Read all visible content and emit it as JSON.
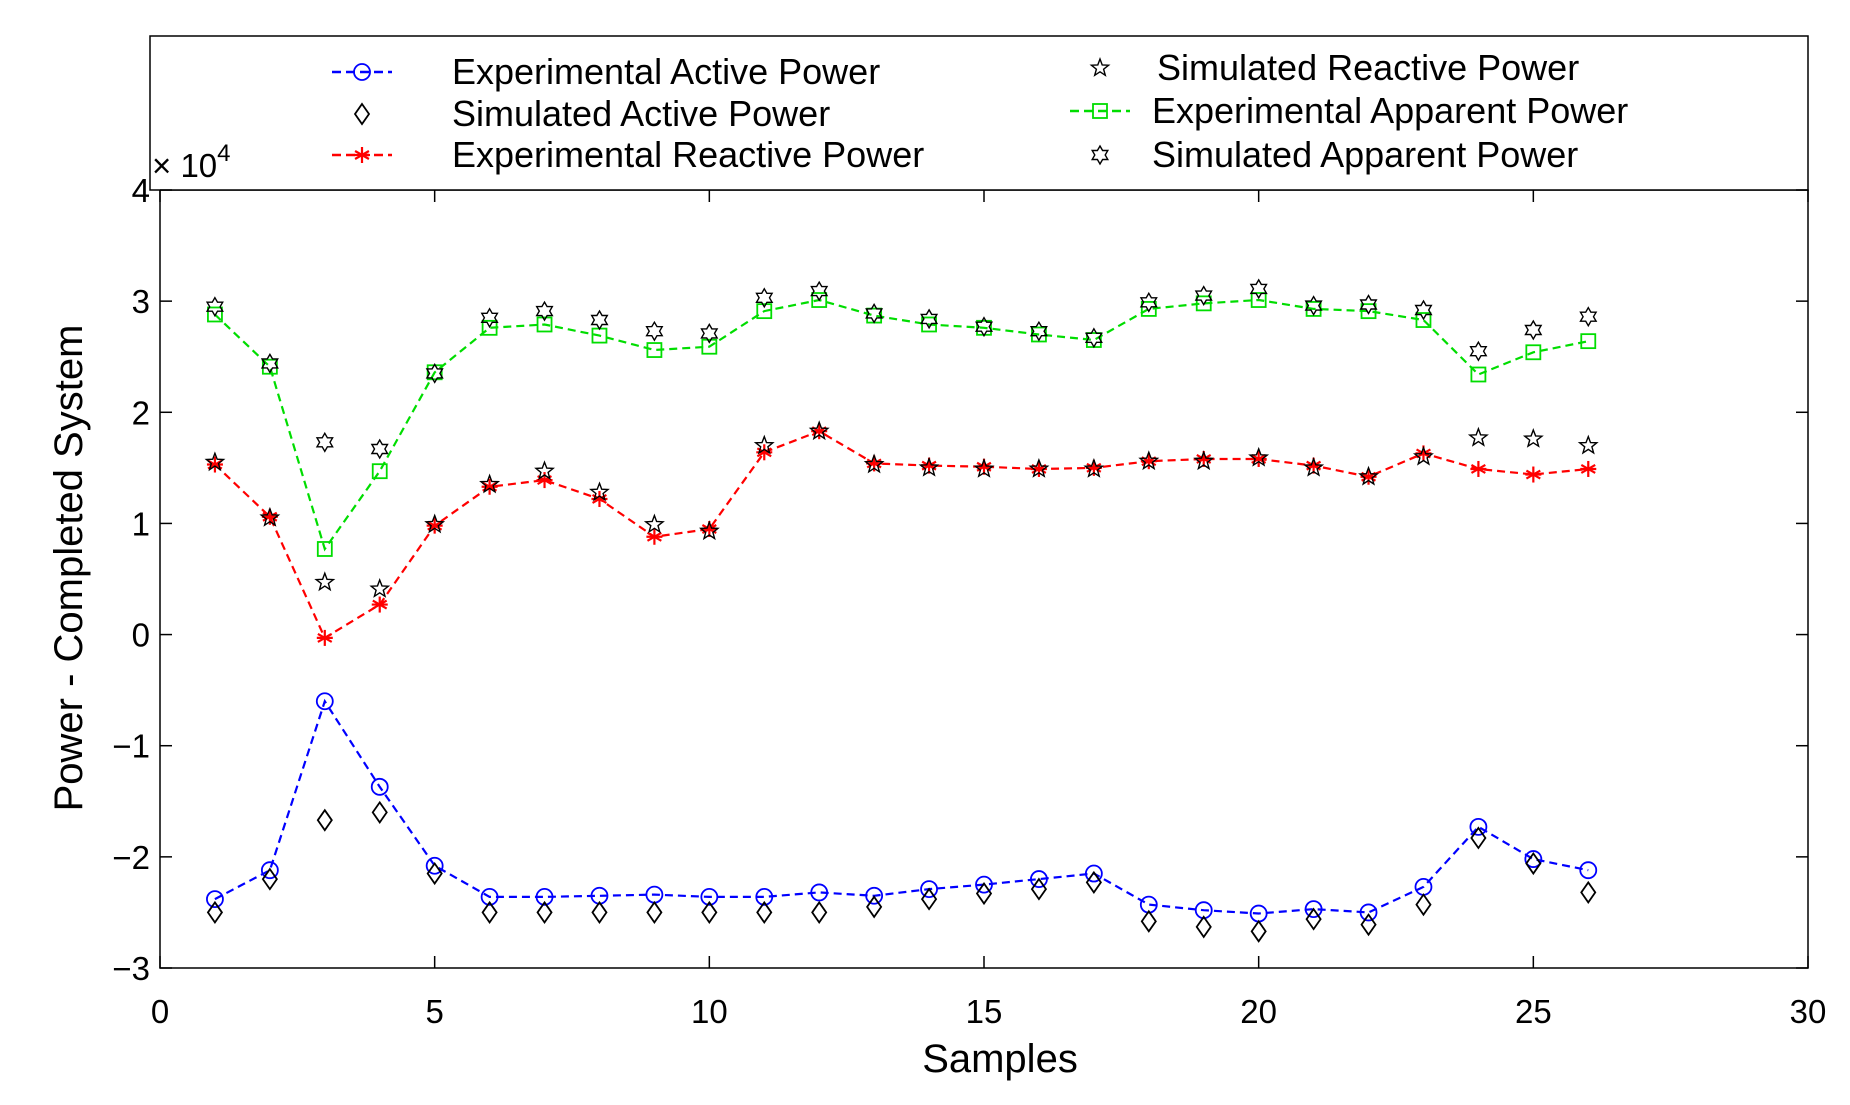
{
  "chart_data": {
    "type": "line",
    "xlabel": "Samples",
    "ylabel": "Power - Completed System",
    "xlim": [
      0,
      30
    ],
    "ylim": [
      -3,
      4
    ],
    "xticks": [
      "0",
      "5",
      "10",
      "15",
      "20",
      "25",
      "30"
    ],
    "yticks": [
      "−3",
      "−2",
      "−1",
      "0",
      "1",
      "2",
      "3",
      "4"
    ],
    "y_exponent": {
      "base": "× 10",
      "power": "4"
    },
    "grid": false,
    "legend_position": "top",
    "x": [
      1,
      2,
      3,
      4,
      5,
      6,
      7,
      8,
      9,
      10,
      11,
      12,
      13,
      14,
      15,
      16,
      17,
      18,
      19,
      20,
      21,
      22,
      23,
      24,
      25,
      26
    ],
    "series": [
      {
        "name": "Experimental Active Power",
        "color": "#0000ff",
        "marker": "circle",
        "line": "dashed",
        "values": [
          -2.38,
          -2.12,
          -0.6,
          -1.37,
          -2.08,
          -2.36,
          -2.36,
          -2.35,
          -2.34,
          -2.36,
          -2.36,
          -2.32,
          -2.35,
          -2.29,
          -2.25,
          -2.2,
          -2.15,
          -2.43,
          -2.48,
          -2.51,
          -2.47,
          -2.5,
          -2.27,
          -1.73,
          -2.02,
          -2.12
        ]
      },
      {
        "name": "Simulated Active Power",
        "color": "#000000",
        "marker": "diamond",
        "line": "none",
        "values": [
          -2.5,
          -2.2,
          -1.67,
          -1.6,
          -2.15,
          -2.5,
          -2.5,
          -2.5,
          -2.5,
          -2.5,
          -2.5,
          -2.5,
          -2.45,
          -2.38,
          -2.33,
          -2.29,
          -2.23,
          -2.58,
          -2.63,
          -2.67,
          -2.56,
          -2.61,
          -2.43,
          -1.83,
          -2.06,
          -2.32
        ]
      },
      {
        "name": "Experimental Reactive Power",
        "color": "#ff0000",
        "marker": "asterisk",
        "line": "dashed",
        "values": [
          1.53,
          1.06,
          -0.03,
          0.27,
          0.98,
          1.33,
          1.39,
          1.22,
          0.88,
          0.95,
          1.64,
          1.83,
          1.54,
          1.52,
          1.51,
          1.49,
          1.5,
          1.56,
          1.58,
          1.58,
          1.52,
          1.42,
          1.63,
          1.49,
          1.44,
          1.49
        ]
      },
      {
        "name": "Simulated Reactive Power",
        "color": "#000000",
        "marker": "star",
        "line": "none",
        "values": [
          1.55,
          1.05,
          0.47,
          0.41,
          0.99,
          1.35,
          1.47,
          1.28,
          0.99,
          0.93,
          1.7,
          1.83,
          1.53,
          1.5,
          1.49,
          1.49,
          1.49,
          1.56,
          1.56,
          1.59,
          1.5,
          1.42,
          1.6,
          1.77,
          1.76,
          1.7
        ]
      },
      {
        "name": "Experimental Apparent Power",
        "color": "#00dd00",
        "marker": "square",
        "line": "dashed",
        "values": [
          2.88,
          2.41,
          0.77,
          1.47,
          2.36,
          2.76,
          2.79,
          2.69,
          2.56,
          2.59,
          2.91,
          3.01,
          2.87,
          2.79,
          2.76,
          2.7,
          2.65,
          2.93,
          2.98,
          3.01,
          2.93,
          2.91,
          2.83,
          2.34,
          2.54,
          2.64
        ]
      },
      {
        "name": "Simulated Apparent Power",
        "color": "#000000",
        "marker": "hexagram",
        "line": "none",
        "values": [
          2.95,
          2.44,
          1.73,
          1.67,
          2.35,
          2.85,
          2.91,
          2.83,
          2.73,
          2.71,
          3.03,
          3.09,
          2.89,
          2.84,
          2.77,
          2.73,
          2.67,
          2.99,
          3.05,
          3.11,
          2.96,
          2.97,
          2.92,
          2.55,
          2.74,
          2.86
        ]
      }
    ]
  }
}
